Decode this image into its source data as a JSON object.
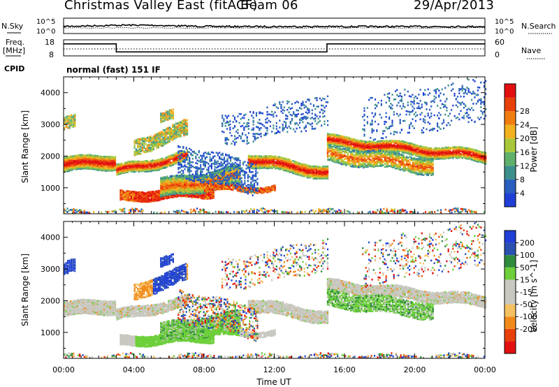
{
  "header": {
    "title": "Christmas Valley East (fitACF)",
    "beam": "Beam 06",
    "date": "29/Apr/2013"
  },
  "colors": {
    "power": [
      "#1f3fd6",
      "#2a5fc0",
      "#3c8f8c",
      "#5fb06b",
      "#a8c83a",
      "#f2b11e",
      "#f07d10",
      "#e8400a",
      "#e31010"
    ],
    "velocity": [
      "#e31010",
      "#e8400a",
      "#f08a1a",
      "#f5c060",
      "#c8c8c0",
      "#c8c8c0",
      "#6dcf3a",
      "#2e8c3c",
      "#2a50b0",
      "#1f3fd6"
    ]
  },
  "chart_data": [
    {
      "type": "line",
      "panel": "noise",
      "left_label": "N.Sky",
      "right_label": "N.Search",
      "left_ticks": [
        "10^5",
        "10^0"
      ],
      "right_ticks": [
        "10^5",
        "10^0"
      ]
    },
    {
      "type": "line",
      "panel": "frequency",
      "left_label_1": "Freq.",
      "left_label_2": "[MHz]",
      "right_label": "Nave",
      "left_ticks": [
        "18",
        "8"
      ],
      "right_ticks": [
        "60",
        "0"
      ],
      "freq_steps": [
        {
          "t": 0,
          "f": 15.5
        },
        {
          "t": 3,
          "f": 15.5
        },
        {
          "t": 3,
          "f": 10.5
        },
        {
          "t": 15,
          "f": 10.5
        },
        {
          "t": 15,
          "f": 15.5
        },
        {
          "t": 24,
          "f": 15.5
        }
      ]
    },
    {
      "type": "heatmap",
      "panel": "power",
      "cpid_label": "CPID",
      "cpid_text": "normal (fast) 151 IF",
      "ylabel": "Slant Range [km]",
      "ylim": [
        180,
        4500
      ],
      "y_ticks": [
        "1000",
        "2000",
        "3000",
        "4000"
      ],
      "colorbar_label": "Power [dB]",
      "colorbar_ticks": [
        "4",
        "8",
        "12",
        "16",
        "20",
        "24",
        "28"
      ]
    },
    {
      "type": "heatmap",
      "panel": "velocity",
      "ylabel": "Slant Range [km]",
      "ylim": [
        180,
        4500
      ],
      "y_ticks": [
        "1000",
        "2000",
        "3000",
        "4000"
      ],
      "colorbar_label": "Velocity [m s^-1]",
      "colorbar_ticks": [
        "200",
        "100",
        "50",
        "15",
        "-15",
        "-50",
        "-100",
        "-200"
      ],
      "xlabel": "Time UT",
      "x_ticks": [
        "00:00",
        "04:00",
        "08:00",
        "12:00",
        "16:00",
        "20:00",
        "00:00"
      ]
    }
  ]
}
